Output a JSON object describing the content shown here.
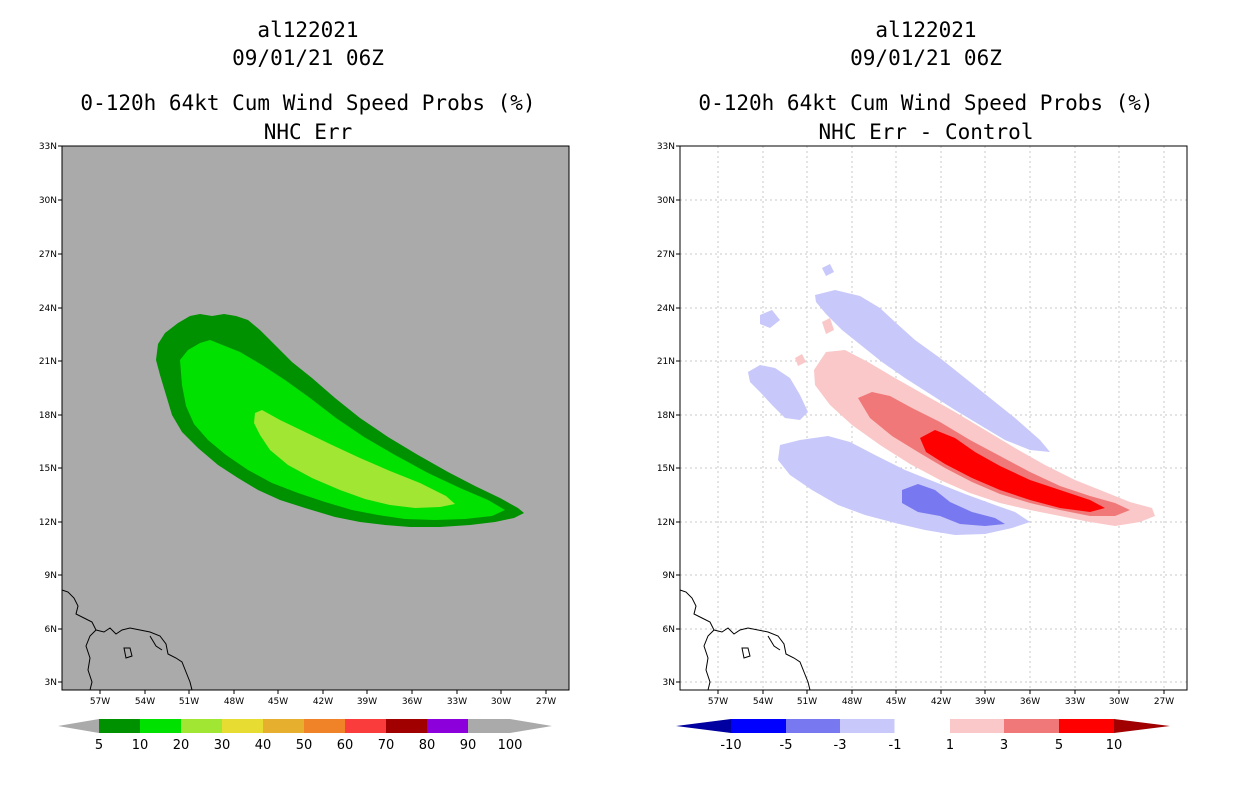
{
  "left_panel": {
    "storm_id": "al122021",
    "datetime": "09/01/21 06Z",
    "product": "0-120h 64kt Cum Wind Speed Probs (%)",
    "subtitle": "NHC Err",
    "colorbar": {
      "labels": [
        "5",
        "10",
        "20",
        "30",
        "40",
        "50",
        "60",
        "70",
        "80",
        "90",
        "100"
      ],
      "colors": [
        "#009100",
        "#00e100",
        "#a0e632",
        "#e6dc32",
        "#e6af2d",
        "#f08228",
        "#fa3c3c",
        "#a00000",
        "#8c00dc"
      ],
      "end_color": "#aaaaaa"
    }
  },
  "right_panel": {
    "storm_id": "al122021",
    "datetime": "09/01/21 06Z",
    "product": "0-120h 64kt Cum Wind Speed Probs (%)",
    "subtitle": "NHC Err - Control",
    "colorbar": {
      "labels": [
        "-10",
        "-5",
        "-3",
        "-1",
        "1",
        "3",
        "5",
        "10"
      ],
      "colors": [
        "#0000ff",
        "#7878f0",
        "#c8c8fa",
        "#ffffff",
        "#fac8c8",
        "#f07878",
        "#ff0000"
      ],
      "low_color": "#0000a0",
      "high_color": "#a00000"
    }
  },
  "map_axes": {
    "lat_labels": [
      "33N",
      "30N",
      "27N",
      "24N",
      "21N",
      "18N",
      "15N",
      "12N",
      "9N",
      "6N",
      "3N"
    ],
    "lon_labels": [
      "57W",
      "54W",
      "51W",
      "48W",
      "45W",
      "42W",
      "39W",
      "36W",
      "33W",
      "30W",
      "27W"
    ]
  },
  "colors": {
    "background_gray": "#aaaaaa",
    "grid": "#c8c8c8"
  }
}
